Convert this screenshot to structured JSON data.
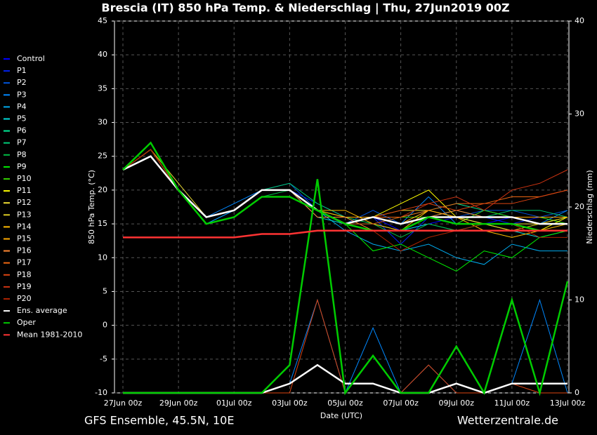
{
  "chart_data": {
    "type": "line",
    "title": "Brescia  (IT)  850 hPa Temp. & Niederschlag | Thu, 27Jun2019 00Z",
    "ylabel": "850 hPa Temp. (°C)",
    "y2label": "Niederschlag (mm)",
    "xlabel": "Date (UTC)",
    "footer_left": "GFS Ensemble, 45.5N, 10E",
    "footer_right": "Wetterzentrale.de",
    "categories": [
      "27Jun 00z",
      null,
      "29Jun 00z",
      null,
      "01Jul 00z",
      null,
      "03Jul 00z",
      null,
      "05Jul 00z",
      null,
      "07Jul 00z",
      null,
      "09Jul 00z",
      null,
      "11Jul 00z",
      null,
      "13Jul 00z"
    ],
    "ylim": [
      -10,
      45
    ],
    "yticks": [
      -10,
      -5,
      0,
      5,
      10,
      15,
      20,
      25,
      30,
      35,
      40,
      45
    ],
    "y2lim": [
      0,
      40
    ],
    "y2ticks": [
      0,
      10,
      20,
      30,
      40
    ],
    "grid": true,
    "legend": "left",
    "series": [
      {
        "name": "Control",
        "color": "#0000ff",
        "values": [
          23,
          26,
          20,
          16,
          17,
          20,
          20,
          17,
          15,
          16,
          14,
          15,
          16,
          15,
          16,
          15,
          15
        ]
      },
      {
        "name": "P1",
        "color": "#0022ee",
        "values": [
          23,
          26,
          20,
          15,
          17,
          20,
          20,
          18,
          16,
          16,
          12,
          16,
          17,
          16,
          15,
          16,
          16
        ]
      },
      {
        "name": "P2",
        "color": "#0055dd",
        "values": [
          23,
          26,
          20,
          16,
          17,
          20,
          21,
          17,
          15,
          17,
          15,
          17,
          16,
          17,
          17,
          16,
          17
        ]
      },
      {
        "name": "P3",
        "color": "#0088ff",
        "values": [
          23,
          26,
          20,
          16,
          18,
          20,
          20,
          17,
          15,
          16,
          15,
          19,
          15,
          17,
          16,
          15,
          17
        ],
        "precip": [
          0,
          0,
          0,
          0,
          0,
          0,
          1,
          10,
          0,
          7,
          0,
          3,
          0,
          0,
          1,
          10,
          0
        ]
      },
      {
        "name": "P4",
        "color": "#00aaee",
        "values": [
          23,
          26,
          20,
          15,
          17,
          20,
          20,
          17,
          14,
          12,
          11,
          12,
          10,
          9,
          12,
          11,
          11
        ]
      },
      {
        "name": "P5",
        "color": "#00dddd",
        "values": [
          23,
          26,
          20,
          16,
          17,
          20,
          20,
          16,
          15,
          15,
          14,
          15,
          14,
          15,
          14,
          13,
          14
        ]
      },
      {
        "name": "P6",
        "color": "#00ee99",
        "values": [
          23,
          26,
          20,
          16,
          17,
          20,
          20,
          17,
          16,
          16,
          16,
          17,
          18,
          17,
          16,
          16,
          15
        ]
      },
      {
        "name": "P7",
        "color": "#00cc77",
        "values": [
          23,
          26,
          20,
          16,
          17,
          20,
          21,
          18,
          16,
          15,
          16,
          16,
          17,
          16,
          17,
          17,
          16
        ]
      },
      {
        "name": "P8",
        "color": "#00bb44",
        "values": [
          23,
          26,
          20,
          15,
          16,
          19,
          20,
          17,
          16,
          15,
          13,
          15,
          14,
          15,
          14,
          14,
          14
        ]
      },
      {
        "name": "P9",
        "color": "#00ee00",
        "values": [
          23,
          26,
          20,
          16,
          17,
          20,
          20,
          17,
          15,
          11,
          12,
          10,
          8,
          11,
          10,
          13,
          14
        ]
      },
      {
        "name": "P10",
        "color": "#33cc00",
        "values": [
          23,
          26,
          20,
          16,
          17,
          20,
          20,
          17,
          15,
          15,
          16,
          16,
          15,
          17,
          16,
          16,
          15
        ]
      },
      {
        "name": "P11",
        "color": "#ffff00",
        "values": [
          23,
          26,
          20,
          16,
          17,
          20,
          20,
          17,
          15,
          16,
          18,
          20,
          16,
          15,
          14,
          14,
          16
        ]
      },
      {
        "name": "P12",
        "color": "#eedd33",
        "values": [
          23,
          26,
          21,
          16,
          17,
          20,
          20,
          17,
          16,
          16,
          17,
          17,
          16,
          15,
          15,
          15,
          16
        ]
      },
      {
        "name": "P13",
        "color": "#ddcc22",
        "values": [
          23,
          26,
          20,
          16,
          17,
          20,
          20,
          17,
          15,
          16,
          15,
          16,
          15,
          15,
          14,
          15,
          16
        ]
      },
      {
        "name": "P14",
        "color": "#ffbb00",
        "values": [
          23,
          26,
          20,
          16,
          17,
          20,
          20,
          17,
          17,
          15,
          14,
          17,
          16,
          14,
          13,
          14,
          15
        ]
      },
      {
        "name": "P15",
        "color": "#ffaa00",
        "values": [
          23,
          26,
          20,
          16,
          17,
          20,
          20,
          17,
          16,
          16,
          15,
          17,
          16,
          16,
          16,
          16,
          16
        ]
      },
      {
        "name": "P16",
        "color": "#ff8833",
        "values": [
          23,
          26,
          20,
          16,
          17,
          20,
          20,
          16,
          16,
          14,
          14,
          16,
          17,
          16,
          16,
          15,
          15
        ]
      },
      {
        "name": "P17",
        "color": "#ee6611",
        "values": [
          23,
          26,
          20,
          16,
          17,
          20,
          20,
          17,
          15,
          16,
          16,
          17,
          18,
          18,
          19,
          19,
          20
        ]
      },
      {
        "name": "P18",
        "color": "#dd4411",
        "values": [
          23,
          26,
          20,
          16,
          17,
          20,
          20,
          17,
          15,
          16,
          17,
          18,
          17,
          18,
          18,
          19,
          20
        ],
        "precip": [
          0,
          0,
          0,
          0,
          0,
          0,
          0,
          10,
          0,
          4,
          0,
          3,
          0,
          0,
          1,
          0,
          0
        ]
      },
      {
        "name": "P19",
        "color": "#cc3311",
        "values": [
          23,
          26,
          20,
          16,
          17,
          20,
          20,
          17,
          15,
          15,
          16,
          18,
          19,
          17,
          20,
          21,
          23
        ]
      },
      {
        "name": "P20",
        "color": "#aa2200",
        "values": [
          23,
          26,
          20,
          16,
          17,
          20,
          20,
          17,
          15,
          14,
          11,
          13,
          14,
          15,
          15,
          13,
          13
        ]
      },
      {
        "name": "Ens. average",
        "color": "#ffffff",
        "values": [
          23,
          25,
          20,
          16,
          17,
          20,
          20,
          17,
          15,
          16,
          15,
          16,
          16,
          16,
          16,
          15,
          15
        ],
        "precip": [
          0,
          0,
          0,
          0,
          0,
          0,
          1,
          3,
          1,
          1,
          0,
          0,
          1,
          0,
          1,
          1,
          1
        ]
      },
      {
        "name": "Oper",
        "color": "#00cc00",
        "values": [
          23,
          27,
          20,
          15,
          16,
          19,
          19,
          17,
          15,
          14,
          14,
          16,
          15,
          15,
          15,
          14,
          14
        ],
        "precip": [
          0,
          0,
          0,
          0,
          0,
          0,
          3,
          23,
          0,
          4,
          0,
          0,
          5,
          0,
          10,
          0,
          12
        ]
      },
      {
        "name": "Mean 1981-2010",
        "color": "#ff3333",
        "values": [
          13,
          13,
          13,
          13,
          13,
          13.5,
          13.5,
          14,
          14,
          14,
          14,
          14,
          14,
          14,
          14,
          14,
          14
        ]
      }
    ]
  }
}
